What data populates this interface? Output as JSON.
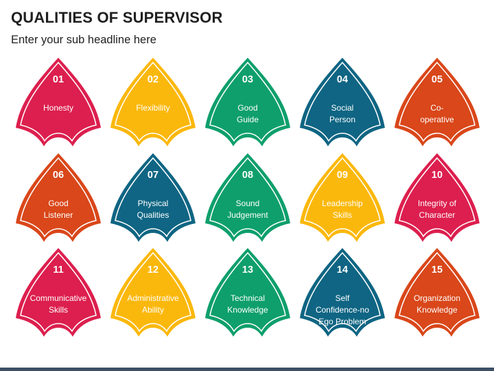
{
  "header": {
    "title": "QUALITIES OF SUPERVISOR",
    "subtitle": "Enter your sub headline here"
  },
  "colors": {
    "red": "#dc1f4e",
    "yellow": "#fbb80c",
    "green": "#0e9f6c",
    "blue": "#0f6583",
    "orange": "#d9471a",
    "text": "#ffffff",
    "footer": "#3d4f66"
  },
  "cards": [
    {
      "number": "01",
      "label": "Honesty",
      "color": "red"
    },
    {
      "number": "02",
      "label": "Flexibility",
      "color": "yellow"
    },
    {
      "number": "03",
      "label": "Good\nGuide",
      "color": "green"
    },
    {
      "number": "04",
      "label": "Social\nPerson",
      "color": "blue"
    },
    {
      "number": "05",
      "label": "Co-\noperative",
      "color": "orange"
    },
    {
      "number": "06",
      "label": "Good\nListener",
      "color": "orange"
    },
    {
      "number": "07",
      "label": "Physical\nQualities",
      "color": "blue"
    },
    {
      "number": "08",
      "label": "Sound\nJudgement",
      "color": "green"
    },
    {
      "number": "09",
      "label": "Leadership\nSkills",
      "color": "yellow"
    },
    {
      "number": "10",
      "label": "Integrity of\nCharacter",
      "color": "red"
    },
    {
      "number": "11",
      "label": "Communicative\nSkills",
      "color": "red"
    },
    {
      "number": "12",
      "label": "Administrative\nAbility",
      "color": "yellow"
    },
    {
      "number": "13",
      "label": "Technical\nKnowledge",
      "color": "green"
    },
    {
      "number": "14",
      "label": "Self\nConfidence-no\nEgo Problem",
      "color": "blue"
    },
    {
      "number": "15",
      "label": "Organization\nKnowledge",
      "color": "orange"
    }
  ]
}
